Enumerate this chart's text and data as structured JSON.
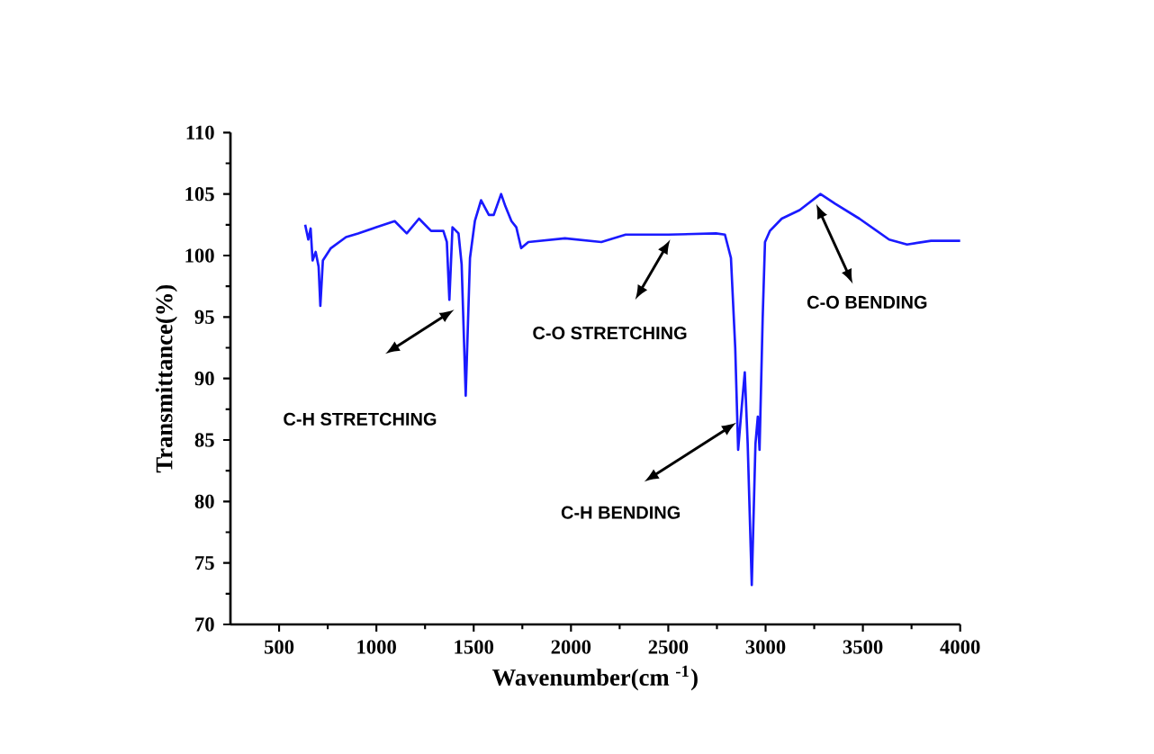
{
  "chart_data": {
    "type": "line",
    "xlabel": "Wavenumber(cm $^{-1}$)",
    "ylabel": "Transmittance(%)",
    "xlim": [
      250,
      4000
    ],
    "xticks": [
      500,
      1000,
      1500,
      2000,
      2500,
      3000,
      3500,
      4000
    ],
    "ylim": [
      70,
      110
    ],
    "yticks": [
      70,
      75,
      80,
      85,
      90,
      95,
      100,
      105,
      110
    ],
    "marker": "none",
    "line_style": "solid",
    "grid": false,
    "series": [
      {
        "color": "#1a1aff",
        "x": [
          634,
          650,
          662,
          672,
          688,
          703,
          712,
          725,
          766,
          844,
          906,
          1000,
          1094,
          1156,
          1219,
          1281,
          1344,
          1362,
          1375,
          1391,
          1422,
          1438,
          1459,
          1481,
          1506,
          1538,
          1578,
          1603,
          1641,
          1663,
          1694,
          1719,
          1744,
          1781,
          1969,
          2156,
          2281,
          2500,
          2745,
          2791,
          2822,
          2844,
          2859,
          2877,
          2893,
          2908,
          2929,
          2948,
          2960,
          2969,
          2985,
          2997,
          3022,
          3083,
          3175,
          3282,
          3359,
          3482,
          3635,
          3727,
          3850,
          4000
        ],
        "values": [
          102.5,
          101.3,
          102.2,
          99.6,
          100.3,
          99.1,
          95.9,
          99.6,
          100.6,
          101.5,
          101.8,
          102.3,
          102.8,
          101.8,
          103.0,
          102.0,
          102.0,
          101.1,
          96.4,
          102.3,
          101.8,
          99.3,
          88.6,
          99.8,
          102.8,
          104.5,
          103.3,
          103.3,
          105.0,
          104.0,
          102.8,
          102.3,
          100.6,
          101.1,
          101.4,
          101.1,
          101.7,
          101.7,
          101.8,
          101.7,
          99.8,
          92.5,
          84.2,
          87.6,
          90.5,
          84.7,
          73.2,
          84.7,
          86.9,
          84.2,
          94.9,
          101.1,
          102.0,
          103.0,
          103.7,
          105.0,
          104.2,
          103.0,
          101.3,
          100.9,
          101.2,
          101.2
        ]
      }
    ],
    "annotations": [
      "C-H STRETCHING",
      "C-O STRETCHING",
      "C-H BENDING",
      "C-O BENDING"
    ]
  }
}
